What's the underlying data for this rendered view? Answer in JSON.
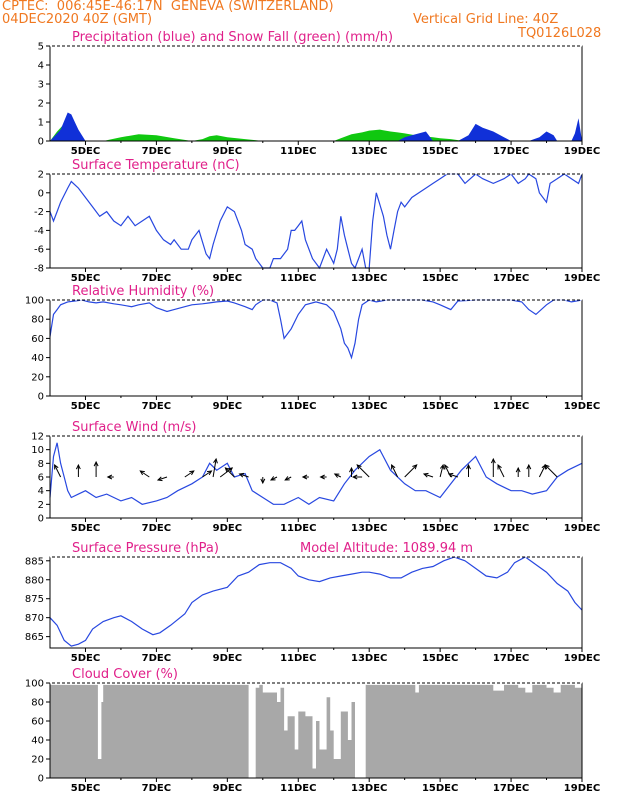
{
  "header": {
    "org_location": "CPTEC:  006:45E-46:17N  GENEVA (SWITZERLAND)",
    "run_time": "04DEC2020 40Z (GMT)",
    "grid_line": "Vertical Grid Line: 40Z",
    "model_code": "TQ0126L028"
  },
  "colors": {
    "header": "#f07820",
    "panel_title": "#e0208a",
    "precip": "#1030d8",
    "snow": "#10c810",
    "line": "#2848e0",
    "arrow": "#000000",
    "cloud": "#a8a8a8"
  },
  "chart_data": [
    {
      "type": "area",
      "title": "Precipitation (blue) and Snow Fall (green) (mm/h)",
      "x_ticks": [
        "5DEC",
        "7DEC",
        "9DEC",
        "11DEC",
        "13DEC",
        "15DEC",
        "17DEC",
        "19DEC"
      ],
      "ylim": [
        0,
        5
      ],
      "y_ticks": [
        0,
        1,
        2,
        3,
        4,
        5
      ],
      "series": [
        {
          "name": "Precipitation",
          "x": [
            4.0,
            4.3,
            4.5,
            4.6,
            4.7,
            4.8,
            5.0,
            12.3,
            13.8,
            14.0,
            14.2,
            14.4,
            14.6,
            14.8,
            15.5,
            15.8,
            16.0,
            16.2,
            16.5,
            16.8,
            17.0,
            17.3,
            17.5,
            17.8,
            18.0,
            18.1,
            18.2,
            18.3,
            18.5,
            18.7,
            18.8,
            18.9,
            19.0
          ],
          "y": [
            0,
            0.6,
            1.5,
            1.4,
            1.0,
            0.6,
            0,
            0,
            0,
            0.2,
            0.3,
            0.4,
            0.5,
            0,
            0,
            0.3,
            0.9,
            0.7,
            0.5,
            0.2,
            0,
            0,
            0,
            0.2,
            0.5,
            0.4,
            0.3,
            0,
            0,
            0,
            0.4,
            1.2,
            0
          ]
        },
        {
          "name": "Snow Fall",
          "x": [
            4.0,
            4.2,
            4.4,
            4.6,
            4.8,
            5.0,
            5.5,
            6.0,
            6.5,
            7.0,
            7.5,
            8.0,
            8.3,
            8.5,
            8.7,
            9.0,
            9.5,
            10.0,
            12.0,
            12.2,
            12.5,
            12.8,
            13.0,
            13.3,
            13.6,
            13.8,
            14.0,
            14.3,
            14.5,
            14.8,
            15.0,
            15.3,
            15.5,
            15.7,
            15.9
          ],
          "y": [
            0,
            0.5,
            0.9,
            0.8,
            0.4,
            0,
            0,
            0.2,
            0.35,
            0.3,
            0.15,
            0,
            0.1,
            0.25,
            0.3,
            0.2,
            0.1,
            0,
            0,
            0.15,
            0.35,
            0.45,
            0.55,
            0.6,
            0.5,
            0.45,
            0.4,
            0.3,
            0.25,
            0.2,
            0.15,
            0.1,
            0.05,
            0,
            0
          ]
        }
      ]
    },
    {
      "type": "line",
      "title": "Surface Temperature (nC)",
      "x_ticks": [
        "5DEC",
        "7DEC",
        "9DEC",
        "11DEC",
        "13DEC",
        "15DEC",
        "17DEC",
        "19DEC"
      ],
      "ylim": [
        -8,
        2
      ],
      "y_ticks": [
        -8,
        -6,
        -4,
        -2,
        0,
        2
      ],
      "series": [
        {
          "name": "Temperature",
          "x": [
            4.0,
            4.1,
            4.2,
            4.3,
            4.5,
            4.6,
            4.8,
            5.0,
            5.2,
            5.4,
            5.6,
            5.8,
            6.0,
            6.2,
            6.4,
            6.6,
            6.8,
            7.0,
            7.2,
            7.4,
            7.5,
            7.7,
            7.9,
            8.0,
            8.2,
            8.4,
            8.5,
            8.6,
            8.8,
            9.0,
            9.2,
            9.4,
            9.5,
            9.7,
            9.8,
            10.0,
            10.2,
            10.3,
            10.5,
            10.7,
            10.8,
            10.9,
            11.0,
            11.1,
            11.2,
            11.4,
            11.6,
            11.8,
            12.0,
            12.1,
            12.2,
            12.3,
            12.4,
            12.5,
            12.6,
            12.7,
            12.8,
            12.9,
            13.0,
            13.1,
            13.2,
            13.4,
            13.5,
            13.6,
            13.7,
            13.8,
            13.9,
            14.0,
            14.2,
            14.4,
            14.6,
            14.8,
            15.0,
            15.2,
            15.5,
            15.7,
            16.0,
            16.2,
            16.5,
            16.8,
            17.0,
            17.2,
            17.4,
            17.5,
            17.7,
            17.8,
            18.0,
            18.1,
            18.3,
            18.5,
            18.7,
            18.9,
            19.0
          ],
          "y": [
            -2,
            -3,
            -2,
            -1,
            0.5,
            1.2,
            0.5,
            -0.5,
            -1.5,
            -2.5,
            -2,
            -3,
            -3.5,
            -2.5,
            -3.5,
            -3,
            -2.5,
            -4,
            -5,
            -5.5,
            -5,
            -6,
            -6,
            -5,
            -4,
            -6.5,
            -7,
            -5.5,
            -3,
            -1.5,
            -2,
            -4,
            -5.5,
            -6,
            -7,
            -8,
            -8.5,
            -7,
            -7,
            -6,
            -4,
            -4,
            -3.5,
            -3,
            -5,
            -7,
            -8,
            -6,
            -7.5,
            -6,
            -2.5,
            -4.5,
            -6,
            -7.5,
            -8,
            -7,
            -6,
            -8.5,
            -8,
            -3,
            0,
            -2.5,
            -4.5,
            -6,
            -4,
            -2,
            -1,
            -1.5,
            -0.5,
            0,
            0.5,
            1,
            1.5,
            2,
            2,
            1,
            2,
            1.5,
            1,
            1.5,
            2,
            1,
            1.5,
            2,
            1.5,
            0,
            -1,
            1,
            1.5,
            2,
            1.5,
            1,
            2
          ]
        }
      ]
    },
    {
      "type": "line",
      "title": "Relative Humidity (%)",
      "x_ticks": [
        "5DEC",
        "7DEC",
        "9DEC",
        "11DEC",
        "13DEC",
        "15DEC",
        "17DEC",
        "19DEC"
      ],
      "ylim": [
        0,
        100
      ],
      "y_ticks": [
        0,
        20,
        40,
        60,
        80,
        100
      ],
      "series": [
        {
          "name": "Humidity",
          "x": [
            4.0,
            4.1,
            4.2,
            4.3,
            4.5,
            4.7,
            4.9,
            5.1,
            5.3,
            5.5,
            5.8,
            6.0,
            6.3,
            6.5,
            6.8,
            7.0,
            7.3,
            7.5,
            7.8,
            8.0,
            8.3,
            8.5,
            8.7,
            9.0,
            9.2,
            9.5,
            9.7,
            9.8,
            10.0,
            10.2,
            10.4,
            10.5,
            10.6,
            10.8,
            11.0,
            11.2,
            11.5,
            11.8,
            12.0,
            12.2,
            12.3,
            12.4,
            12.5,
            12.6,
            12.7,
            12.8,
            13.0,
            13.2,
            13.5,
            14.0,
            14.5,
            14.8,
            15.0,
            15.3,
            15.5,
            16.0,
            16.5,
            17.0,
            17.3,
            17.5,
            17.7,
            18.0,
            18.2,
            18.5,
            18.7,
            19.0
          ],
          "y": [
            62,
            85,
            90,
            95,
            98,
            99,
            100,
            98,
            97,
            98,
            96,
            95,
            93,
            95,
            97,
            92,
            88,
            90,
            93,
            95,
            96,
            97,
            98,
            99,
            97,
            93,
            90,
            95,
            100,
            100,
            97,
            80,
            60,
            70,
            85,
            95,
            98,
            95,
            88,
            70,
            55,
            50,
            40,
            55,
            80,
            95,
            100,
            98,
            100,
            100,
            100,
            98,
            95,
            90,
            99,
            100,
            100,
            100,
            98,
            90,
            85,
            95,
            100,
            100,
            98,
            100
          ]
        }
      ]
    },
    {
      "type": "line",
      "title": "Surface Wind (m/s)",
      "x_ticks": [
        "5DEC",
        "7DEC",
        "9DEC",
        "11DEC",
        "13DEC",
        "15DEC",
        "17DEC",
        "19DEC"
      ],
      "ylim": [
        0,
        12
      ],
      "y_ticks": [
        0,
        2,
        4,
        6,
        8,
        10,
        12
      ],
      "series": [
        {
          "name": "Wind speed",
          "x": [
            4.0,
            4.1,
            4.2,
            4.3,
            4.4,
            4.5,
            4.6,
            4.8,
            5.0,
            5.3,
            5.6,
            6.0,
            6.3,
            6.6,
            7.0,
            7.3,
            7.6,
            8.0,
            8.3,
            8.5,
            8.7,
            9.0,
            9.2,
            9.5,
            9.7,
            10.0,
            10.3,
            10.6,
            11.0,
            11.3,
            11.6,
            12.0,
            12.3,
            12.6,
            13.0,
            13.3,
            13.6,
            14.0,
            14.3,
            14.6,
            15.0,
            15.3,
            15.6,
            16.0,
            16.3,
            16.6,
            17.0,
            17.3,
            17.6,
            18.0,
            18.3,
            18.6,
            19.0
          ],
          "y": [
            3,
            9,
            11,
            8,
            6,
            4,
            3,
            3.5,
            4,
            3,
            3.5,
            2.5,
            3,
            2,
            2.5,
            3,
            4,
            5,
            6,
            8,
            7,
            8,
            6,
            6.5,
            4,
            3,
            2,
            2,
            3,
            2,
            3,
            2.5,
            5,
            7,
            9,
            10,
            7,
            5,
            4,
            4,
            3,
            5,
            7,
            9,
            6,
            5,
            4,
            4,
            3.5,
            4,
            6,
            7,
            8
          ]
        }
      ],
      "arrows": [
        {
          "x": 4.3,
          "u": -1,
          "v": 2
        },
        {
          "x": 4.8,
          "u": 0,
          "v": 2
        },
        {
          "x": 5.3,
          "u": 0,
          "v": 2.5
        },
        {
          "x": 5.8,
          "u": -1,
          "v": 0
        },
        {
          "x": 6.8,
          "u": -1.5,
          "v": 1
        },
        {
          "x": 7.3,
          "u": -1.5,
          "v": -0.5
        },
        {
          "x": 7.8,
          "u": 1.5,
          "v": 1
        },
        {
          "x": 8.3,
          "u": 1.5,
          "v": 1
        },
        {
          "x": 8.6,
          "u": 0.5,
          "v": 3
        },
        {
          "x": 8.8,
          "u": 2,
          "v": 1.5
        },
        {
          "x": 9.2,
          "u": -1.5,
          "v": 1.5
        },
        {
          "x": 9.6,
          "u": -1.5,
          "v": 0.5
        },
        {
          "x": 10.0,
          "u": 0,
          "v": -1
        },
        {
          "x": 10.4,
          "u": -1,
          "v": -0.5
        },
        {
          "x": 10.8,
          "u": -1,
          "v": -0.5
        },
        {
          "x": 11.3,
          "u": -1,
          "v": 0
        },
        {
          "x": 11.8,
          "u": -1,
          "v": 0
        },
        {
          "x": 12.2,
          "u": -1,
          "v": 0.5
        },
        {
          "x": 12.5,
          "u": 0,
          "v": 1.5
        },
        {
          "x": 12.8,
          "u": -1.5,
          "v": 0
        },
        {
          "x": 13.0,
          "u": -2,
          "v": 2
        },
        {
          "x": 13.8,
          "u": -1,
          "v": 2
        },
        {
          "x": 14.0,
          "u": 2,
          "v": 2
        },
        {
          "x": 14.8,
          "u": -1.5,
          "v": 0.5
        },
        {
          "x": 15.0,
          "u": 0.5,
          "v": 2
        },
        {
          "x": 15.3,
          "u": -1,
          "v": 2
        },
        {
          "x": 15.5,
          "u": -1.5,
          "v": 0.5
        },
        {
          "x": 15.8,
          "u": 0,
          "v": 2
        },
        {
          "x": 16.5,
          "u": 0,
          "v": 3
        },
        {
          "x": 16.8,
          "u": -1,
          "v": 2
        },
        {
          "x": 17.2,
          "u": 0,
          "v": 1.5
        },
        {
          "x": 17.5,
          "u": 0,
          "v": 2
        },
        {
          "x": 17.8,
          "u": 1,
          "v": 2
        },
        {
          "x": 18.3,
          "u": -2,
          "v": 2
        }
      ]
    },
    {
      "type": "line",
      "title": "Surface Pressure (hPa)",
      "annotation": "Model Altitude: 1089.94  m",
      "x_ticks": [
        "5DEC",
        "7DEC",
        "9DEC",
        "11DEC",
        "13DEC",
        "15DEC",
        "17DEC",
        "19DEC"
      ],
      "ylim": [
        862,
        886
      ],
      "y_ticks": [
        865,
        870,
        875,
        880,
        885
      ],
      "series": [
        {
          "name": "Pressure",
          "x": [
            4.0,
            4.2,
            4.4,
            4.6,
            4.8,
            5.0,
            5.2,
            5.5,
            5.8,
            6.0,
            6.3,
            6.6,
            6.9,
            7.1,
            7.4,
            7.8,
            8.0,
            8.3,
            8.6,
            9.0,
            9.3,
            9.6,
            9.9,
            10.2,
            10.5,
            10.8,
            11.0,
            11.3,
            11.6,
            11.9,
            12.2,
            12.5,
            12.8,
            13.0,
            13.3,
            13.6,
            13.9,
            14.2,
            14.5,
            14.8,
            15.1,
            15.4,
            15.7,
            16.0,
            16.3,
            16.6,
            16.9,
            17.1,
            17.4,
            17.7,
            18.0,
            18.3,
            18.6,
            18.8,
            19.0
          ],
          "y": [
            870,
            868,
            864,
            862.5,
            863,
            864,
            867,
            869,
            870,
            870.5,
            869,
            867,
            865.5,
            866,
            868,
            871,
            874,
            876,
            877,
            878,
            881,
            882,
            884,
            884.5,
            884.5,
            883,
            881,
            880,
            879.5,
            880.5,
            881,
            881.5,
            882,
            882,
            881.5,
            880.5,
            880.5,
            882,
            883,
            883.5,
            885,
            886,
            885,
            883,
            881,
            880.5,
            882,
            884.5,
            886,
            884,
            882,
            879,
            877,
            874,
            872
          ]
        }
      ]
    },
    {
      "type": "area",
      "title": "Cloud Cover (%)",
      "x_ticks": [
        "5DEC",
        "7DEC",
        "9DEC",
        "11DEC",
        "13DEC",
        "15DEC",
        "17DEC",
        "19DEC"
      ],
      "ylim": [
        0,
        100
      ],
      "y_ticks": [
        0,
        20,
        40,
        60,
        80,
        100
      ],
      "series": [
        {
          "name": "Cloud Cover",
          "x": [
            4.0,
            5.3,
            5.35,
            5.45,
            5.5,
            6.0,
            8.0,
            9.5,
            9.6,
            9.8,
            9.9,
            10.0,
            10.4,
            10.5,
            10.6,
            10.7,
            10.9,
            11.0,
            11.2,
            11.4,
            11.5,
            11.6,
            11.8,
            11.9,
            12.0,
            12.2,
            12.4,
            12.5,
            12.6,
            12.7,
            12.9,
            13.0,
            13.5,
            14.0,
            14.2,
            14.3,
            14.4,
            15.0,
            15.5,
            16.0,
            16.3,
            16.5,
            16.8,
            17.0,
            17.2,
            17.4,
            17.6,
            17.8,
            18.0,
            18.2,
            18.4,
            18.6,
            18.8,
            19.0
          ],
          "y": [
            98,
            98,
            20,
            80,
            98,
            98,
            98,
            98,
            0,
            95,
            98,
            90,
            80,
            95,
            50,
            65,
            30,
            70,
            65,
            10,
            60,
            30,
            85,
            50,
            20,
            70,
            40,
            80,
            0,
            0,
            98,
            98,
            98,
            98,
            98,
            90,
            98,
            98,
            98,
            98,
            98,
            92,
            98,
            98,
            95,
            90,
            98,
            98,
            95,
            90,
            98,
            98,
            95,
            100
          ]
        }
      ]
    }
  ]
}
